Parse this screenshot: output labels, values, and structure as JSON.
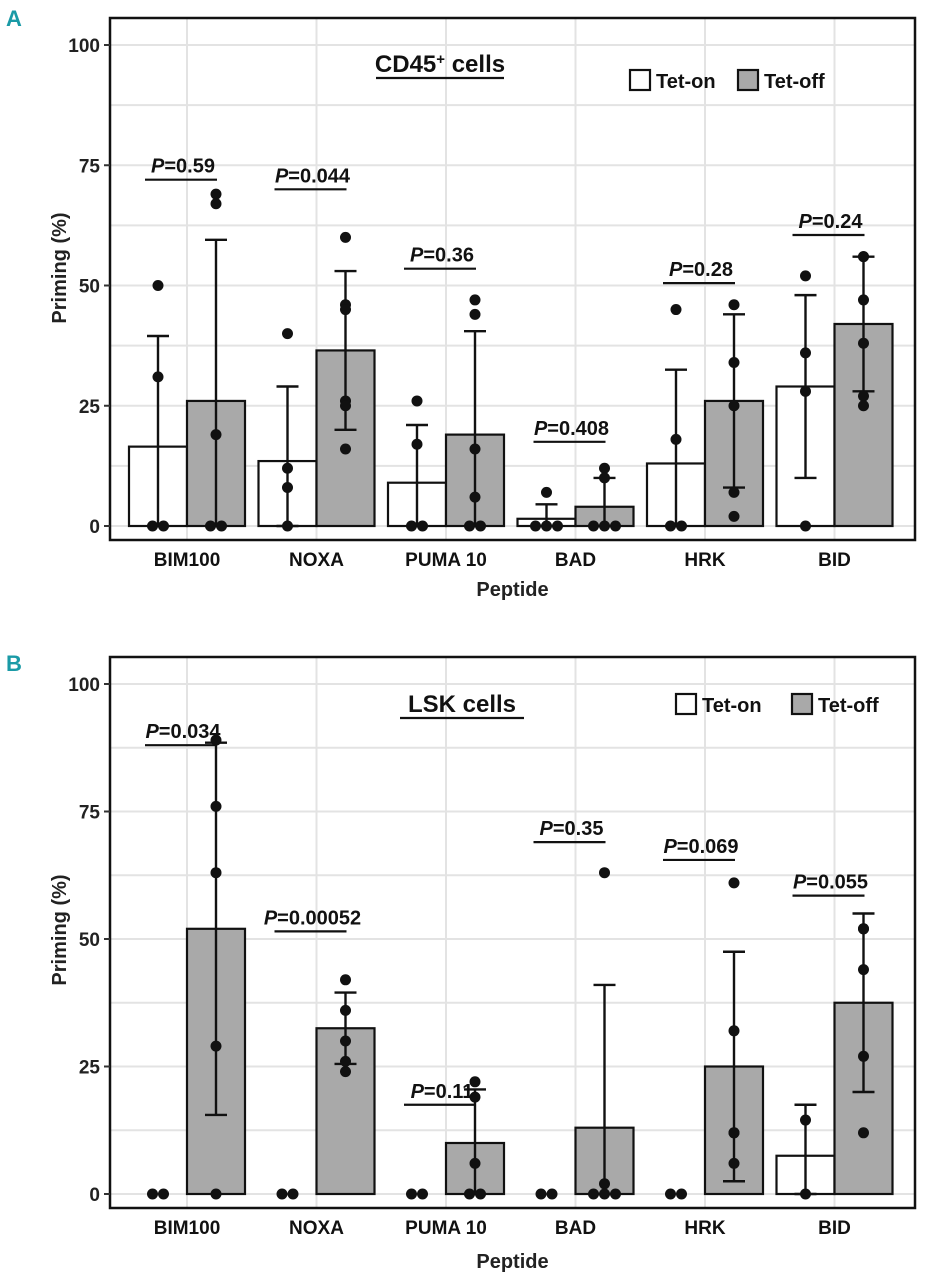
{
  "panels": [
    {
      "letter": "A",
      "chart_data": {
        "type": "bar",
        "title": "CD45+ cells",
        "title_main": "CD45",
        "title_sup": "+",
        "title_suffix": " cells",
        "xlabel": "Peptide",
        "ylabel": "Priming (%)",
        "ylim": [
          0,
          100
        ],
        "yticks": [
          0,
          25,
          50,
          75,
          100
        ],
        "categories": [
          "BIM100",
          "NOXA",
          "PUMA 10",
          "BAD",
          "HRK",
          "BID"
        ],
        "legend": {
          "position": "top-right",
          "entries": [
            "Tet-on",
            "Tet-off"
          ]
        },
        "series": [
          {
            "name": "Tet-on",
            "values": [
              16.5,
              13.5,
              9,
              1.5,
              13,
              29
            ],
            "sd": [
              23,
              15.5,
              12,
              3,
              19.5,
              19
            ],
            "points": [
              [
                50,
                31,
                0,
                0
              ],
              [
                40,
                12,
                8,
                0
              ],
              [
                26,
                17,
                0,
                0
              ],
              [
                7,
                0,
                0,
                0
              ],
              [
                45,
                18,
                0,
                0
              ],
              [
                52,
                36,
                28,
                0
              ]
            ]
          },
          {
            "name": "Tet-off",
            "values": [
              26,
              36.5,
              19,
              4,
              26,
              42
            ],
            "sd": [
              33.5,
              16.5,
              21.5,
              6,
              18,
              14
            ],
            "points": [
              [
                69,
                67,
                19,
                0,
                0
              ],
              [
                60,
                46,
                45,
                26,
                25,
                16
              ],
              [
                47,
                44,
                16,
                6,
                0,
                0
              ],
              [
                12,
                10,
                0,
                0,
                0
              ],
              [
                46,
                34,
                25,
                7,
                2
              ],
              [
                56,
                56,
                47,
                38,
                27,
                25
              ]
            ]
          }
        ],
        "pvalues": [
          "0.59",
          "0.044",
          "0.36",
          "0.408",
          "0.28",
          "0.24"
        ],
        "pvalue_y": [
          72,
          70,
          53.5,
          17.5,
          50.5,
          60.5
        ]
      }
    },
    {
      "letter": "B",
      "chart_data": {
        "type": "bar",
        "title": "LSK cells",
        "title_main": "LSK cells",
        "title_sup": "",
        "title_suffix": "",
        "xlabel": "Peptide",
        "ylabel": "Priming (%)",
        "ylim": [
          0,
          100
        ],
        "yticks": [
          0,
          25,
          50,
          75,
          100
        ],
        "categories": [
          "BIM100",
          "NOXA",
          "PUMA 10",
          "BAD",
          "HRK",
          "BID"
        ],
        "legend": {
          "position": "top-right",
          "entries": [
            "Tet-on",
            "Tet-off"
          ]
        },
        "series": [
          {
            "name": "Tet-on",
            "values": [
              0,
              0,
              0,
              0,
              0,
              7.5
            ],
            "sd": [
              0,
              0,
              0,
              0,
              0,
              10
            ],
            "points": [
              [
                0,
                0
              ],
              [
                0,
                0
              ],
              [
                0,
                0
              ],
              [
                0,
                0
              ],
              [
                0,
                0
              ],
              [
                14.5,
                0
              ]
            ]
          },
          {
            "name": "Tet-off",
            "values": [
              52,
              32.5,
              10,
              13,
              25,
              37.5
            ],
            "sd": [
              36.5,
              7,
              10.5,
              28,
              22.5,
              17.5
            ],
            "points": [
              [
                89,
                76,
                63,
                29,
                0
              ],
              [
                42,
                36,
                30,
                26,
                24
              ],
              [
                22,
                19,
                6,
                0,
                0
              ],
              [
                63,
                2,
                0,
                0,
                0
              ],
              [
                61,
                32,
                12,
                12,
                6
              ],
              [
                52,
                52,
                44,
                27,
                12
              ]
            ]
          }
        ],
        "pvalues": [
          "0.034",
          "0.00052",
          "0.11",
          "0.35",
          "0.069",
          "0.055"
        ],
        "pvalue_y": [
          88,
          51.5,
          17.5,
          69,
          65.5,
          58.5
        ]
      }
    }
  ],
  "p_prefix": "P",
  "p_eq": "=",
  "colors": {
    "tet_on": "#ffffff",
    "tet_off": "#a9a9a9",
    "accent": "#1a9aa6",
    "grid": "#e3e3e3"
  }
}
